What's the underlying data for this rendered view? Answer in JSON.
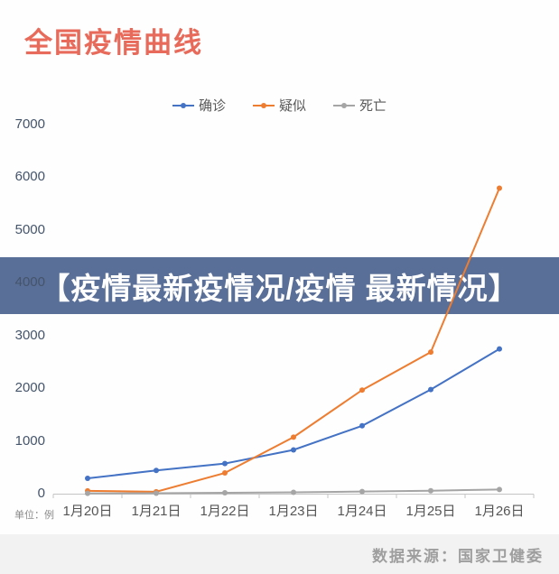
{
  "page": {
    "title": "全国疫情曲线",
    "title_color": "#e76a5a"
  },
  "banner": {
    "text": "【疫情最新疫情况/疫情 最新情况】",
    "bg_color": "#546a94",
    "text_color": "#ffffff"
  },
  "footer": {
    "source_label": "数据来源：国家卫健委"
  },
  "chart_data": {
    "type": "line",
    "title": "全国疫情曲线",
    "unit_label": "单位：例",
    "categories": [
      "1月20日",
      "1月21日",
      "1月22日",
      "1月23日",
      "1月24日",
      "1月25日",
      "1月26日"
    ],
    "series": [
      {
        "name": "确诊",
        "color": "#4472c4",
        "values": [
          291,
          440,
          571,
          830,
          1287,
          1975,
          2744
        ]
      },
      {
        "name": "疑似",
        "color": "#ed7d31",
        "values": [
          54,
          37,
          393,
          1072,
          1965,
          2684,
          5794
        ]
      },
      {
        "name": "死亡",
        "color": "#a5a5a5",
        "values": [
          6,
          9,
          17,
          25,
          41,
          56,
          80
        ]
      }
    ],
    "y_ticks": [
      7000,
      6000,
      5000,
      4000,
      3000,
      2000,
      1000,
      0
    ],
    "ylim": [
      0,
      7000
    ],
    "legend_position": "top",
    "grid": false,
    "axis_color": "#c4c4c4",
    "ylabel_color": "#44546a",
    "xlabel_color": "#555555"
  }
}
